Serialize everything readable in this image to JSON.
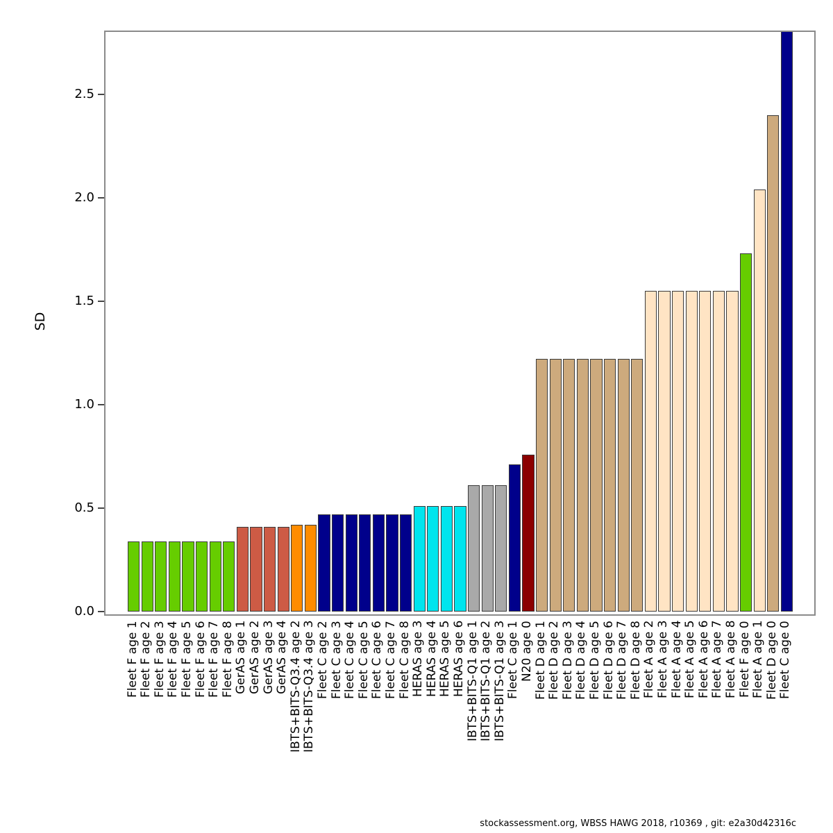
{
  "figure": {
    "ylabel": "SD",
    "footer": "stockassessment.org, WBSS HAWG 2018, r10369 , git: e2a30d42316c"
  },
  "chart_data": {
    "type": "bar",
    "title": "",
    "xlabel": "",
    "ylabel": "SD",
    "ylim": [
      0,
      2.81
    ],
    "yticks": [
      "0.0",
      "0.5",
      "1.0",
      "1.5",
      "2.0",
      "2.5"
    ],
    "grid": false,
    "legend_position": "none",
    "categories": [
      "Fleet F age 1",
      "Fleet F age 2",
      "Fleet F age 3",
      "Fleet F age 4",
      "Fleet F age 5",
      "Fleet F age 6",
      "Fleet F age 7",
      "Fleet F age 8",
      "GerAS age 1",
      "GerAS age 2",
      "GerAS age 3",
      "GerAS age 4",
      "IBTS+BITS-Q3.4 age 2",
      "IBTS+BITS-Q3.4 age 3",
      "Fleet C age 2",
      "Fleet C age 3",
      "Fleet C age 4",
      "Fleet C age 5",
      "Fleet C age 6",
      "Fleet C age 7",
      "Fleet C age 8",
      "HERAS age 3",
      "HERAS age 4",
      "HERAS age 5",
      "HERAS age 6",
      "IBTS+BITS-Q1 age 1",
      "IBTS+BITS-Q1 age 2",
      "IBTS+BITS-Q1 age 3",
      "Fleet C age 1",
      "N20 age 0",
      "Fleet D age 1",
      "Fleet D age 2",
      "Fleet D age 3",
      "Fleet D age 4",
      "Fleet D age 5",
      "Fleet D age 6",
      "Fleet D age 7",
      "Fleet D age 8",
      "Fleet A age 2",
      "Fleet A age 3",
      "Fleet A age 4",
      "Fleet A age 5",
      "Fleet A age 6",
      "Fleet A age 7",
      "Fleet A age 8",
      "Fleet F age 0",
      "Fleet A age 1",
      "Fleet D age 0",
      "Fleet C age 0"
    ],
    "values": [
      0.34,
      0.34,
      0.34,
      0.34,
      0.34,
      0.34,
      0.34,
      0.34,
      0.41,
      0.41,
      0.41,
      0.41,
      0.42,
      0.42,
      0.47,
      0.47,
      0.47,
      0.47,
      0.47,
      0.47,
      0.47,
      0.51,
      0.51,
      0.51,
      0.51,
      0.61,
      0.61,
      0.61,
      0.71,
      0.76,
      1.22,
      1.22,
      1.22,
      1.22,
      1.22,
      1.22,
      1.22,
      1.22,
      1.55,
      1.55,
      1.55,
      1.55,
      1.55,
      1.55,
      1.55,
      1.73,
      2.04,
      2.4,
      2.81
    ],
    "bar_colors": [
      "#66CD00",
      "#66CD00",
      "#66CD00",
      "#66CD00",
      "#66CD00",
      "#66CD00",
      "#66CD00",
      "#66CD00",
      "#CD5B45",
      "#CD5B45",
      "#CD5B45",
      "#CD5B45",
      "#FF8C00",
      "#FF8C00",
      "#00008B",
      "#00008B",
      "#00008B",
      "#00008B",
      "#00008B",
      "#00008B",
      "#00008B",
      "#00E5EE",
      "#00E5EE",
      "#00E5EE",
      "#00E5EE",
      "#A9A9A9",
      "#A9A9A9",
      "#A9A9A9",
      "#00008B",
      "#8B0000",
      "#CDAA7D",
      "#CDAA7D",
      "#CDAA7D",
      "#CDAA7D",
      "#CDAA7D",
      "#CDAA7D",
      "#CDAA7D",
      "#CDAA7D",
      "#FFE4C4",
      "#FFE4C4",
      "#FFE4C4",
      "#FFE4C4",
      "#FFE4C4",
      "#FFE4C4",
      "#FFE4C4",
      "#66CD00",
      "#FFE4C4",
      "#CDAA7D",
      "#00008B"
    ],
    "fleet_color_map": {
      "Fleet F": "#66CD00",
      "GerAS": "#CD5B45",
      "IBTS+BITS-Q3.4": "#FF8C00",
      "Fleet C": "#00008B",
      "HERAS": "#00E5EE",
      "IBTS+BITS-Q1": "#A9A9A9",
      "N20": "#8B0000",
      "Fleet D": "#CDAA7D",
      "Fleet A": "#FFE4C4"
    },
    "footer": "stockassessment.org, WBSS HAWG 2018, r10369 , git: e2a30d42316c"
  }
}
